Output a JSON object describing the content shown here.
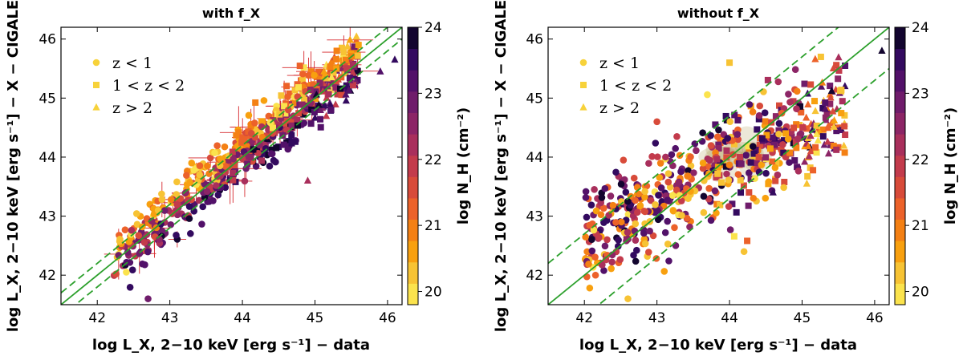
{
  "colormap": {
    "label": "log N_H (cm⁻²)",
    "ticks": [
      "20",
      "21",
      "22",
      "23",
      "24"
    ],
    "range": [
      19.8,
      24.0
    ],
    "bands": [
      "#fbe34d",
      "#f7c334",
      "#f8a00f",
      "#f48014",
      "#ec622a",
      "#d84b3a",
      "#c33b4c",
      "#a92f5c",
      "#8c2566",
      "#6f1c6b",
      "#521169",
      "#330a5f",
      "#13052f"
    ]
  },
  "legend_entries": [
    {
      "marker": "circle",
      "label": "z < 1"
    },
    {
      "marker": "square",
      "label": "1 < z < 2"
    },
    {
      "marker": "triangle",
      "label": "z > 2"
    }
  ],
  "chart_data": [
    {
      "type": "scatter",
      "title": "with f_X",
      "xlabel": "log L_X, 2−10 keV [erg s⁻¹] − data",
      "ylabel": "log L_X, 2−10 keV [erg s⁻¹] − X − CIGALE",
      "xlim": [
        41.5,
        46.2
      ],
      "ylim": [
        41.5,
        46.2
      ],
      "xticks": [
        "42",
        "43",
        "44",
        "45",
        "46"
      ],
      "yticks": [
        "42",
        "43",
        "44",
        "45",
        "46"
      ],
      "reference_lines": [
        {
          "style": "solid",
          "offset": 0
        },
        {
          "style": "dashed",
          "offset": 0.2
        },
        {
          "style": "dashed",
          "offset": -0.2
        }
      ],
      "trend": {
        "slope": 0.98,
        "intercept": 0.85,
        "scatter": 0.22
      },
      "points": [
        {
          "x": 46.1,
          "y": 45.65,
          "z": "high",
          "nh": 23.6
        },
        {
          "x": 45.9,
          "y": 45.45,
          "z": "high",
          "nh": 23.2
        },
        {
          "x": 45.6,
          "y": 45.9,
          "z": "mid",
          "nh": 20.5
        },
        {
          "x": 45.3,
          "y": 45.8,
          "z": "mid",
          "nh": 21.0
        },
        {
          "x": 42.4,
          "y": 42.05,
          "z": "low",
          "nh": 20.0
        },
        {
          "x": 42.7,
          "y": 41.6,
          "z": "low",
          "nh": 22.8
        },
        {
          "x": 43.3,
          "y": 43.9,
          "z": "low",
          "nh": 20.6
        },
        {
          "x": 44.9,
          "y": 43.6,
          "z": "high",
          "nh": 22.3
        }
      ]
    },
    {
      "type": "scatter",
      "title": "without f_X",
      "xlabel": "log L_X, 2−10 keV [erg s⁻¹] − data",
      "ylabel": "log L_X, 2−10 keV [erg s⁻¹] − X − CIGALE",
      "xlim": [
        41.5,
        46.2
      ],
      "ylim": [
        41.5,
        46.2
      ],
      "xticks": [
        "42",
        "43",
        "44",
        "45",
        "46"
      ],
      "yticks": [
        "42",
        "43",
        "44",
        "45",
        "46"
      ],
      "reference_lines": [
        {
          "style": "solid",
          "offset": 0
        },
        {
          "style": "dashed",
          "offset": 0.7
        },
        {
          "style": "dashed",
          "offset": -0.7
        }
      ],
      "trend": {
        "slope": 0.62,
        "intercept": 16.6,
        "scatter": 0.45
      },
      "points": [
        {
          "x": 46.1,
          "y": 45.8,
          "z": "high",
          "nh": 23.9
        },
        {
          "x": 44.0,
          "y": 45.6,
          "z": "mid",
          "nh": 20.3
        },
        {
          "x": 44.2,
          "y": 42.4,
          "z": "low",
          "nh": 20.4
        },
        {
          "x": 42.6,
          "y": 41.6,
          "z": "low",
          "nh": 20.2
        },
        {
          "x": 44.6,
          "y": 43.4,
          "z": "high",
          "nh": 23.5
        },
        {
          "x": 43.0,
          "y": 44.6,
          "z": "low",
          "nh": 21.5
        }
      ]
    }
  ]
}
